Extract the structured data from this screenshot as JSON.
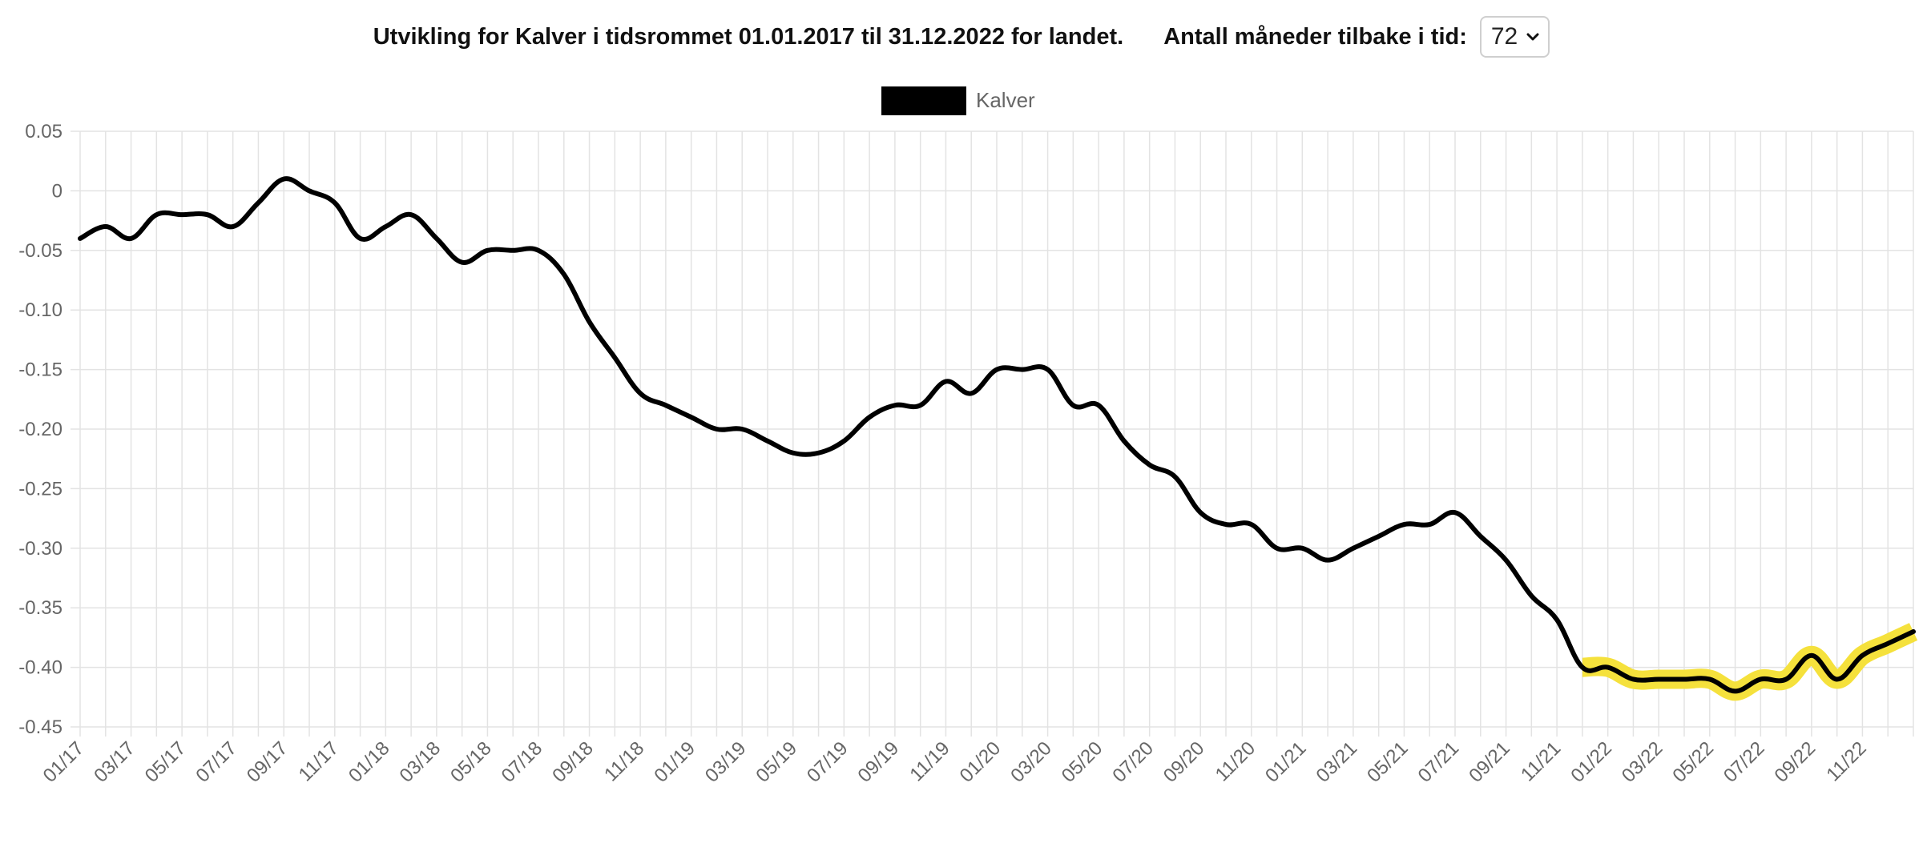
{
  "header": {
    "title": "Utvikling for Kalver i tidsrommet 01.01.2017 til 31.12.2022 for landet.",
    "months_label": "Antall måneder tilbake i tid:",
    "months_value": "72"
  },
  "colors": {
    "line": "#000000",
    "highlight": "#f5e13c",
    "grid": "#e3e3e3",
    "tick_text": "#666666"
  },
  "chart_data": {
    "type": "line",
    "legend": {
      "label": "Kalver",
      "placement": "top-center"
    },
    "grid": true,
    "ylim": [
      -0.45,
      0.05
    ],
    "y_ticks": [
      "0.05",
      "0",
      "-0.05",
      "-0.10",
      "-0.15",
      "-0.20",
      "-0.25",
      "-0.30",
      "-0.35",
      "-0.40",
      "-0.45"
    ],
    "x_ticks": [
      "01/17",
      "03/17",
      "05/17",
      "07/17",
      "09/17",
      "11/17",
      "01/18",
      "03/18",
      "05/18",
      "07/18",
      "09/18",
      "11/18",
      "01/19",
      "03/19",
      "05/19",
      "07/19",
      "09/19",
      "11/19",
      "01/20",
      "03/20",
      "05/20",
      "07/20",
      "09/20",
      "11/20",
      "01/21",
      "03/21",
      "05/21",
      "07/21",
      "09/21",
      "11/21",
      "01/22",
      "03/22",
      "05/22",
      "07/22",
      "09/22",
      "11/22"
    ],
    "series": [
      {
        "name": "Kalver",
        "values": [
          -0.04,
          -0.03,
          -0.04,
          -0.02,
          -0.02,
          -0.02,
          -0.03,
          -0.01,
          0.01,
          0.0,
          -0.01,
          -0.04,
          -0.03,
          -0.02,
          -0.04,
          -0.06,
          -0.05,
          -0.05,
          -0.05,
          -0.07,
          -0.11,
          -0.14,
          -0.17,
          -0.18,
          -0.19,
          -0.2,
          -0.2,
          -0.21,
          -0.22,
          -0.22,
          -0.21,
          -0.19,
          -0.18,
          -0.18,
          -0.16,
          -0.17,
          -0.15,
          -0.15,
          -0.15,
          -0.18,
          -0.18,
          -0.21,
          -0.23,
          -0.24,
          -0.27,
          -0.28,
          -0.28,
          -0.3,
          -0.3,
          -0.31,
          -0.3,
          -0.29,
          -0.28,
          -0.28,
          -0.27,
          -0.29,
          -0.31,
          -0.34,
          -0.36,
          -0.4,
          -0.4,
          -0.41,
          -0.41,
          -0.41,
          -0.41,
          -0.42,
          -0.41,
          -0.41,
          -0.39,
          -0.41,
          -0.39,
          -0.38,
          -0.37
        ]
      }
    ],
    "highlight_range": {
      "from_index": 59,
      "to_index": 72
    }
  }
}
